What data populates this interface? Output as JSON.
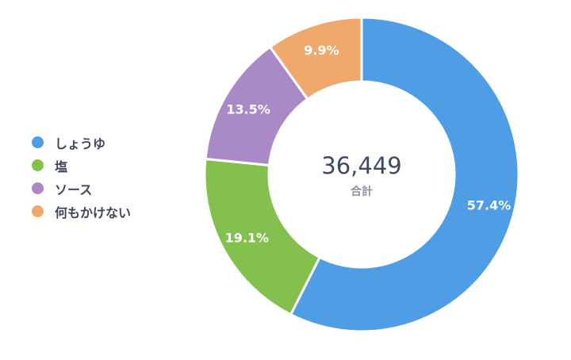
{
  "chart_data": {
    "type": "pie",
    "categories": [
      "しょうゆ",
      "塩",
      "ソース",
      "何もかけない"
    ],
    "values": [
      57.4,
      19.1,
      13.5,
      9.9
    ],
    "value_labels": [
      "57.4%",
      "19.1%",
      "13.5%",
      "9.9%"
    ],
    "colors": [
      "#4f9de4",
      "#84c04e",
      "#a98ac7",
      "#f0a86d"
    ],
    "legend_position": "left",
    "center": {
      "total": "36,449",
      "label": "合計"
    }
  }
}
